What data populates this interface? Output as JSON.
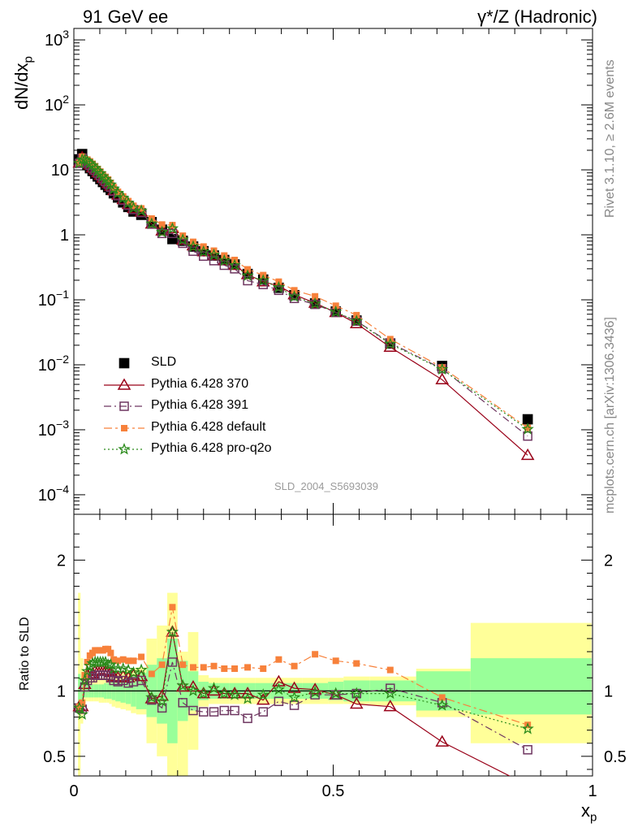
{
  "header": {
    "left_title": "91 GeV ee",
    "right_title": "γ*/Z (Hadronic)"
  },
  "side_labels": {
    "rivet": "Rivet 3.1.10, ≥ 2.6M events",
    "mcplots": "mcplots.cern.ch [arXiv:1306.3436]"
  },
  "watermark": "SLD_2004_S5693039",
  "colors": {
    "SLD": "#000000",
    "p370": "#990018",
    "p391": "#6e3660",
    "pdefault": "#f7813b",
    "pq2o": "#2a8a1a",
    "band_yellow": "#ffff99",
    "band_green": "#99ff99"
  },
  "chart_data": [
    {
      "type": "scatter",
      "name": "main",
      "ylabel": "dN/dx",
      "ylabel_sub": "p",
      "yscale": "log",
      "ylim": [
        5e-05,
        1500
      ],
      "xlim": [
        0,
        1
      ],
      "y_ticks": [
        {
          "v": 0.0001,
          "mant": "10",
          "exp": "−4"
        },
        {
          "v": 0.001,
          "mant": "10",
          "exp": "−3"
        },
        {
          "v": 0.01,
          "mant": "10",
          "exp": "−2"
        },
        {
          "v": 0.1,
          "mant": "10",
          "exp": "−1"
        },
        {
          "v": 1,
          "mant": "1",
          "exp": ""
        },
        {
          "v": 10,
          "mant": "10",
          "exp": ""
        },
        {
          "v": 100,
          "mant": "10",
          "exp": "2"
        },
        {
          "v": 1000,
          "mant": "10",
          "exp": "3"
        }
      ],
      "x": [
        0.0105,
        0.016,
        0.021,
        0.026,
        0.031,
        0.036,
        0.041,
        0.046,
        0.051,
        0.056,
        0.061,
        0.066,
        0.071,
        0.077,
        0.085,
        0.095,
        0.105,
        0.115,
        0.13,
        0.15,
        0.17,
        0.19,
        0.21,
        0.23,
        0.25,
        0.27,
        0.29,
        0.31,
        0.335,
        0.365,
        0.395,
        0.425,
        0.465,
        0.505,
        0.545,
        0.61,
        0.71,
        0.875
      ],
      "series": [
        {
          "name": "SLD",
          "key": "SLD",
          "marker": "square",
          "y": [
            14.5,
            17.5,
            13.1,
            11.8,
            10.6,
            9.6,
            8.7,
            7.9,
            7.2,
            6.5,
            5.9,
            5.4,
            4.9,
            4.35,
            3.75,
            3.15,
            2.68,
            2.28,
            2.03,
            1.57,
            1.2,
            0.86,
            0.81,
            0.66,
            0.56,
            0.48,
            0.41,
            0.35,
            0.25,
            0.205,
            0.153,
            0.118,
            0.088,
            0.066,
            0.048,
            0.0213,
            0.0096,
            0.00145
          ]
        },
        {
          "name": "Pythia 6.428 370",
          "key": "p370",
          "marker": "triangle",
          "dash": "",
          "y": [
            12.8,
            15.4,
            13.7,
            13.2,
            12.0,
            10.8,
            10.0,
            9.1,
            8.3,
            7.5,
            6.8,
            6.2,
            5.6,
            4.8,
            4.1,
            3.5,
            2.95,
            2.55,
            2.25,
            1.47,
            1.15,
            1.25,
            0.83,
            0.68,
            0.55,
            0.48,
            0.4,
            0.34,
            0.245,
            0.19,
            0.164,
            0.12,
            0.089,
            0.064,
            0.043,
            0.0187,
            0.0059,
            0.000405
          ]
        },
        {
          "name": "Pythia 6.428 391",
          "key": "p391",
          "marker": "opensquare",
          "dash": "9,4,2,4",
          "y": [
            12.6,
            15.1,
            13.5,
            12.8,
            11.7,
            10.6,
            9.8,
            8.9,
            8.1,
            7.3,
            6.6,
            6.0,
            5.4,
            4.7,
            4.0,
            3.4,
            2.85,
            2.45,
            2.2,
            1.46,
            1.05,
            1.05,
            0.74,
            0.56,
            0.47,
            0.4,
            0.34,
            0.3,
            0.197,
            0.172,
            0.14,
            0.105,
            0.085,
            0.064,
            0.047,
            0.0217,
            0.0087,
            0.0008
          ]
        },
        {
          "name": "Pythia 6.428 default",
          "key": "pdefault",
          "marker": "smallsquare",
          "dash": "10,4,3,4",
          "y": [
            12.8,
            16.0,
            14.6,
            14.4,
            13.5,
            12.4,
            11.4,
            10.3,
            9.4,
            8.5,
            7.8,
            7.1,
            6.3,
            5.4,
            4.6,
            3.9,
            3.3,
            2.8,
            2.55,
            1.78,
            1.44,
            1.41,
            0.97,
            0.78,
            0.66,
            0.57,
            0.48,
            0.41,
            0.294,
            0.24,
            0.19,
            0.14,
            0.113,
            0.081,
            0.058,
            0.0248,
            0.0091,
            0.00107
          ]
        },
        {
          "name": "Pythia 6.428 pro-q2o",
          "key": "pq2o",
          "marker": "star",
          "dash": "2,3",
          "y": [
            12.6,
            14.3,
            14.2,
            13.6,
            12.6,
            11.6,
            10.6,
            9.6,
            8.8,
            7.9,
            7.2,
            6.5,
            5.9,
            5.1,
            4.4,
            3.7,
            3.1,
            2.6,
            2.35,
            1.48,
            1.1,
            1.25,
            0.84,
            0.66,
            0.55,
            0.49,
            0.4,
            0.34,
            0.235,
            0.198,
            0.155,
            0.112,
            0.087,
            0.065,
            0.047,
            0.0209,
            0.0085,
            0.00102
          ]
        }
      ]
    },
    {
      "type": "line",
      "name": "ratio",
      "ylabel": "Ratio to SLD",
      "ylim": [
        0.35,
        2.35
      ],
      "y_ticks": [
        {
          "v": 0.5,
          "label": "0.5"
        },
        {
          "v": 1,
          "label": "1"
        },
        {
          "v": 2,
          "label": "2"
        }
      ],
      "xlabel": "x",
      "xlabel_sub": "p",
      "xlim": [
        0,
        1
      ],
      "x_ticks": [
        {
          "v": 0,
          "label": "0"
        },
        {
          "v": 0.5,
          "label": "0.5"
        },
        {
          "v": 1,
          "label": "1"
        }
      ],
      "bins": [
        [
          0.008,
          0.013,
          0.3,
          1.75,
          0.87,
          1.13
        ],
        [
          0.013,
          0.018,
          0.75,
          1.25,
          0.92,
          1.08
        ],
        [
          0.018,
          0.023,
          0.9,
          1.1,
          0.95,
          1.05
        ],
        [
          0.023,
          0.028,
          0.92,
          1.08,
          0.95,
          1.05
        ],
        [
          0.028,
          0.033,
          0.92,
          1.08,
          0.95,
          1.05
        ],
        [
          0.033,
          0.038,
          0.92,
          1.08,
          0.95,
          1.05
        ],
        [
          0.038,
          0.043,
          0.92,
          1.09,
          0.95,
          1.05
        ],
        [
          0.043,
          0.048,
          0.92,
          1.09,
          0.95,
          1.05
        ],
        [
          0.048,
          0.053,
          0.91,
          1.1,
          0.95,
          1.05
        ],
        [
          0.053,
          0.058,
          0.91,
          1.1,
          0.95,
          1.05
        ],
        [
          0.058,
          0.063,
          0.91,
          1.1,
          0.94,
          1.06
        ],
        [
          0.063,
          0.068,
          0.91,
          1.1,
          0.94,
          1.06
        ],
        [
          0.068,
          0.073,
          0.9,
          1.1,
          0.94,
          1.06
        ],
        [
          0.073,
          0.08,
          0.88,
          1.12,
          0.93,
          1.07
        ],
        [
          0.08,
          0.09,
          0.87,
          1.13,
          0.92,
          1.08
        ],
        [
          0.09,
          0.1,
          0.86,
          1.15,
          0.91,
          1.09
        ],
        [
          0.1,
          0.11,
          0.85,
          1.16,
          0.9,
          1.1
        ],
        [
          0.11,
          0.12,
          0.83,
          1.17,
          0.88,
          1.12
        ],
        [
          0.12,
          0.14,
          0.82,
          1.18,
          0.86,
          1.14
        ],
        [
          0.14,
          0.16,
          0.6,
          1.4,
          0.8,
          1.2
        ],
        [
          0.16,
          0.18,
          0.5,
          1.5,
          0.75,
          1.25
        ],
        [
          0.18,
          0.2,
          0.25,
          1.75,
          0.6,
          1.4
        ],
        [
          0.2,
          0.22,
          0.35,
          1.3,
          0.77,
          1.23
        ],
        [
          0.22,
          0.24,
          0.55,
          1.45,
          0.85,
          1.15
        ],
        [
          0.24,
          0.26,
          0.88,
          1.12,
          0.93,
          1.07
        ],
        [
          0.26,
          0.28,
          0.9,
          1.1,
          0.94,
          1.06
        ],
        [
          0.28,
          0.3,
          0.9,
          1.1,
          0.94,
          1.06
        ],
        [
          0.3,
          0.32,
          0.9,
          1.1,
          0.94,
          1.06
        ],
        [
          0.32,
          0.35,
          0.9,
          1.1,
          0.94,
          1.06
        ],
        [
          0.35,
          0.38,
          0.9,
          1.1,
          0.94,
          1.06
        ],
        [
          0.38,
          0.41,
          0.9,
          1.1,
          0.94,
          1.06
        ],
        [
          0.41,
          0.44,
          0.9,
          1.1,
          0.94,
          1.06
        ],
        [
          0.44,
          0.49,
          0.9,
          1.1,
          0.94,
          1.06
        ],
        [
          0.49,
          0.52,
          0.9,
          1.1,
          0.93,
          1.07
        ],
        [
          0.52,
          0.57,
          0.9,
          1.11,
          0.92,
          1.08
        ],
        [
          0.57,
          0.66,
          0.89,
          1.11,
          0.92,
          1.08
        ],
        [
          0.66,
          0.765,
          0.8,
          1.17,
          0.85,
          1.15
        ],
        [
          0.765,
          0.998,
          0.6,
          1.52,
          0.82,
          1.25
        ]
      ],
      "series": [
        {
          "key": "p370",
          "y": [
            0.88,
            0.88,
            1.05,
            1.12,
            1.13,
            1.13,
            1.15,
            1.15,
            1.15,
            1.15,
            1.15,
            1.15,
            1.14,
            1.11,
            1.1,
            1.11,
            1.1,
            1.12,
            1.11,
            0.94,
            0.96,
            1.45,
            1.03,
            1.03,
            0.98,
            1.0,
            0.98,
            0.98,
            0.98,
            0.93,
            1.07,
            1.02,
            1.01,
            0.97,
            0.9,
            0.88,
            0.61,
            0.28
          ]
        },
        {
          "key": "p391",
          "y": [
            0.87,
            0.86,
            1.03,
            1.08,
            1.1,
            1.1,
            1.12,
            1.12,
            1.12,
            1.12,
            1.12,
            1.12,
            1.1,
            1.08,
            1.07,
            1.08,
            1.06,
            1.07,
            1.08,
            0.93,
            0.87,
            1.22,
            0.91,
            0.85,
            0.84,
            0.84,
            0.85,
            0.85,
            0.79,
            0.84,
            0.92,
            0.89,
            0.97,
            0.97,
            0.98,
            1.02,
            0.91,
            0.55
          ]
        },
        {
          "key": "pdefault",
          "y": [
            0.88,
            0.91,
            1.12,
            1.22,
            1.27,
            1.29,
            1.31,
            1.31,
            1.31,
            1.31,
            1.32,
            1.32,
            1.29,
            1.24,
            1.23,
            1.24,
            1.23,
            1.23,
            1.26,
            1.13,
            1.2,
            1.64,
            1.2,
            1.18,
            1.18,
            1.19,
            1.17,
            1.17,
            1.18,
            1.17,
            1.24,
            1.19,
            1.28,
            1.23,
            1.21,
            1.16,
            0.95,
            0.74
          ]
        },
        {
          "key": "pq2o",
          "y": [
            0.87,
            0.82,
            1.08,
            1.15,
            1.19,
            1.21,
            1.22,
            1.22,
            1.22,
            1.22,
            1.22,
            1.2,
            1.2,
            1.17,
            1.17,
            1.17,
            1.16,
            1.14,
            1.16,
            0.95,
            0.92,
            1.45,
            1.04,
            1.0,
            0.98,
            1.02,
            0.98,
            0.97,
            0.94,
            0.97,
            1.01,
            0.95,
            0.99,
            0.98,
            0.98,
            0.98,
            0.89,
            0.71
          ]
        }
      ]
    }
  ]
}
